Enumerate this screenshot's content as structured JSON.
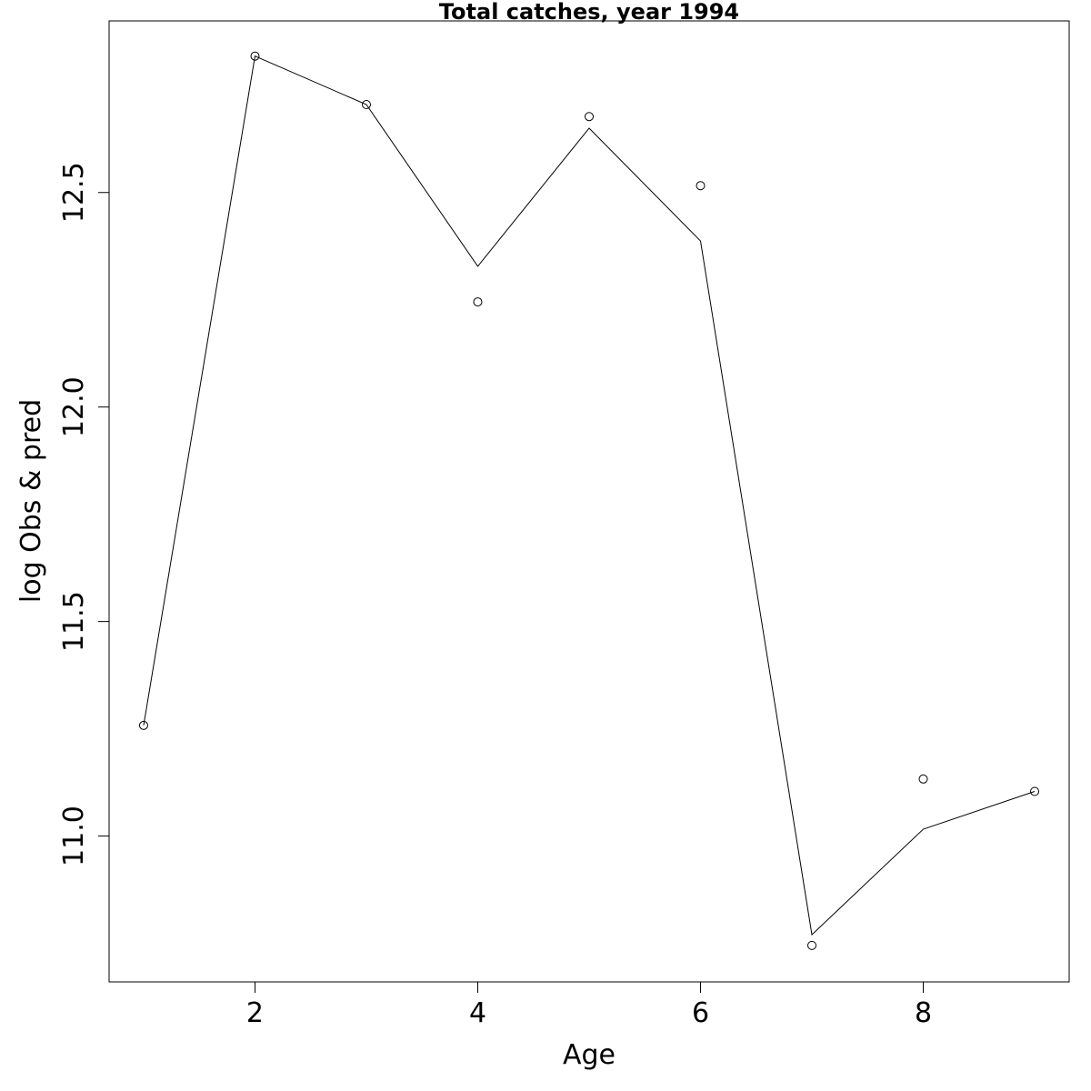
{
  "chart_data": {
    "type": "line",
    "title": "Total catches, year 1994",
    "xlabel": "Age",
    "ylabel": "log Obs & pred",
    "xlim": [
      0.69,
      9.31
    ],
    "ylim": [
      10.66,
      12.9
    ],
    "x_ticks": [
      2,
      4,
      6,
      8
    ],
    "y_ticks": [
      11.0,
      11.5,
      12.0,
      12.5
    ],
    "x_tick_labels": [
      "2",
      "4",
      "6",
      "8"
    ],
    "y_tick_labels": [
      "11.0",
      "11.5",
      "12.0",
      "12.5"
    ],
    "grid": false,
    "x": [
      1,
      2,
      3,
      4,
      5,
      6,
      7,
      8,
      9
    ],
    "observed": [
      11.258,
      12.818,
      12.705,
      12.245,
      12.677,
      12.516,
      10.745,
      11.133,
      11.104
    ],
    "predicted": [
      11.258,
      12.818,
      12.705,
      12.328,
      12.65,
      12.387,
      10.77,
      11.016,
      11.104
    ],
    "color": "#000000"
  }
}
